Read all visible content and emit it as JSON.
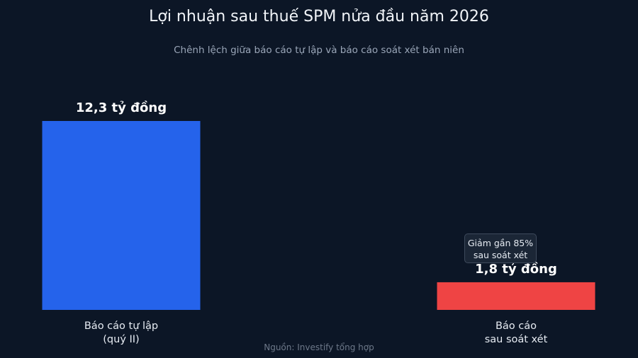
{
  "chart_data": {
    "type": "bar",
    "title": "Lợi nhuận sau thuế SPM nửa đầu năm 2026",
    "subtitle": "Chênh lệch giữa báo cáo tự lập và báo cáo soát xét bán niên",
    "categories": [
      [
        "Báo cáo tự lập",
        "(quý II)"
      ],
      [
        "Báo cáo",
        "sau soát xét"
      ]
    ],
    "values": [
      12.3,
      1.8
    ],
    "value_labels": [
      "12,3 tỷ đồng",
      "1,8 tỷ đồng"
    ],
    "colors": [
      "#2563eb",
      "#ef4444"
    ],
    "ylim": [
      0,
      12.3
    ],
    "grid": false,
    "annotation": {
      "lines": [
        "Giảm gần 85%",
        "sau soát xét"
      ]
    },
    "source": "Nguồn: Investify tổng hợp"
  }
}
